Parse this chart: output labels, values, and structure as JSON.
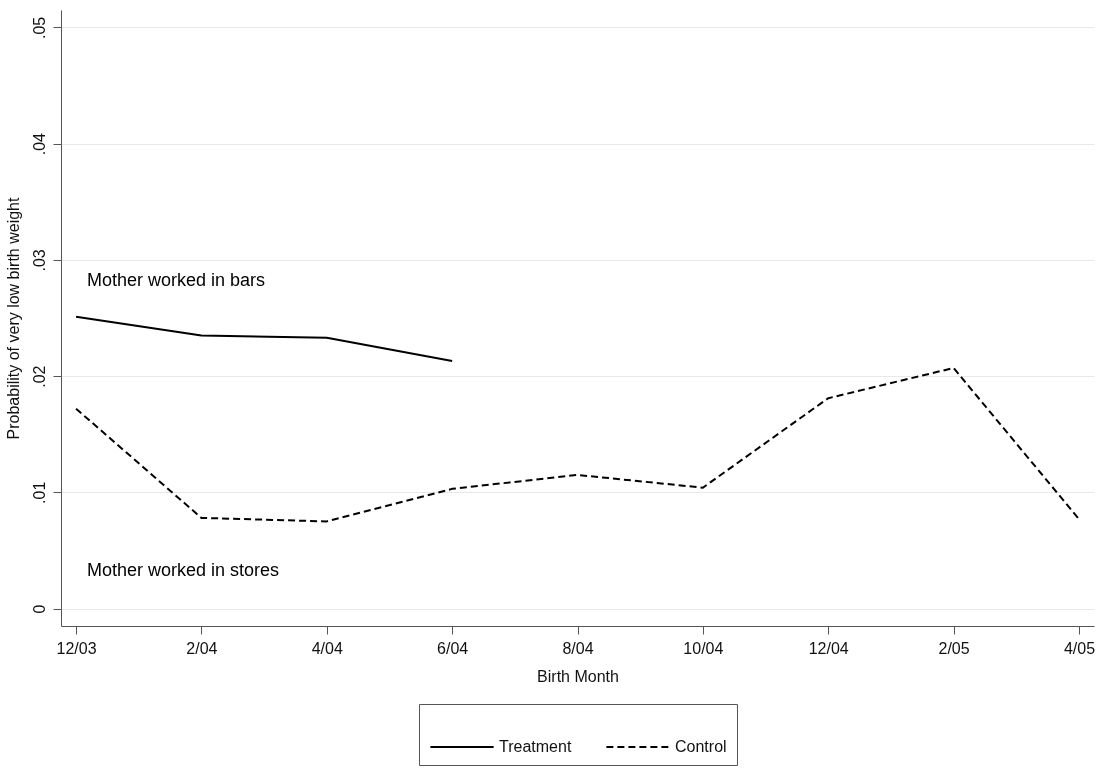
{
  "chart_data": {
    "type": "line",
    "xlabel": "Birth Month",
    "ylabel": "Probability of very low birth weight",
    "categories": [
      "12/03",
      "2/04",
      "4/04",
      "6/04",
      "8/04",
      "10/04",
      "12/04",
      "2/05",
      "4/05"
    ],
    "series": [
      {
        "name": "Treatment",
        "color": "#000000",
        "line_style": "solid",
        "values": [
          0.0251,
          0.0235,
          0.0233,
          0.0213,
          null,
          null,
          null,
          null,
          null
        ]
      },
      {
        "name": "Control",
        "color": "#000000",
        "line_style": "dashed",
        "values": [
          0.0172,
          0.0078,
          0.0075,
          0.0103,
          0.0115,
          0.0104,
          0.0181,
          0.0207,
          0.0077
        ]
      }
    ],
    "ylim": [
      -0.0015,
      0.0515
    ],
    "yticks": [
      {
        "value": 0,
        "label": "0"
      },
      {
        "value": 0.01,
        "label": ".01"
      },
      {
        "value": 0.02,
        "label": ".02"
      },
      {
        "value": 0.03,
        "label": ".03"
      },
      {
        "value": 0.04,
        "label": ".04"
      },
      {
        "value": 0.05,
        "label": ".05"
      }
    ],
    "grid": "y",
    "legend": "bottom",
    "marker": "none",
    "annotations": [
      "Mother worked in bars",
      "Mother worked in stores"
    ]
  }
}
